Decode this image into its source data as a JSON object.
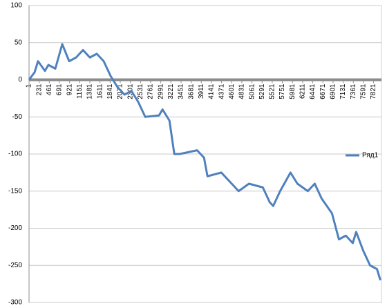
{
  "chart_data": {
    "type": "line",
    "x": [
      1,
      127,
      205,
      362,
      441,
      598,
      755,
      912,
      1069,
      1226,
      1382,
      1539,
      1696,
      1853,
      2010,
      2167,
      2324,
      2481,
      2638,
      2952,
      3031,
      3188,
      3298,
      3423,
      3816,
      3973,
      4051,
      4365,
      4758,
      4993,
      5307,
      5464,
      5543,
      5700,
      5935,
      6092,
      6328,
      6485,
      6642,
      6877,
      7034,
      7191,
      7348,
      7426,
      7584,
      7741,
      7898,
      7976
    ],
    "series": [
      {
        "name": "Ряд1",
        "color": "#4f81bd",
        "values": [
          0,
          10,
          25,
          12,
          20,
          15,
          48,
          25,
          30,
          40,
          30,
          35,
          25,
          5,
          -10,
          -20,
          -15,
          -30,
          -50,
          -48,
          -40,
          -55,
          -100,
          -100,
          -95,
          -105,
          -130,
          -125,
          -150,
          -140,
          -145,
          -165,
          -170,
          -150,
          -125,
          -140,
          -150,
          -140,
          -160,
          -180,
          -215,
          -210,
          -220,
          -205,
          -230,
          -250,
          -255,
          -270
        ]
      }
    ],
    "xlim": [
      1,
      8000
    ],
    "xticks": [
      1,
      231,
      461,
      691,
      921,
      1151,
      1381,
      1611,
      1841,
      2071,
      2301,
      2531,
      2761,
      2991,
      3221,
      3451,
      3681,
      3911,
      4141,
      4371,
      4601,
      4831,
      5061,
      5291,
      5521,
      5751,
      5981,
      6211,
      6441,
      6671,
      6901,
      7131,
      7361,
      7591,
      7821
    ],
    "ylim": [
      -300,
      100
    ],
    "yticks": [
      100,
      50,
      0,
      -50,
      -100,
      -150,
      -200,
      -250,
      -300
    ],
    "grid": true,
    "legend": "right"
  }
}
